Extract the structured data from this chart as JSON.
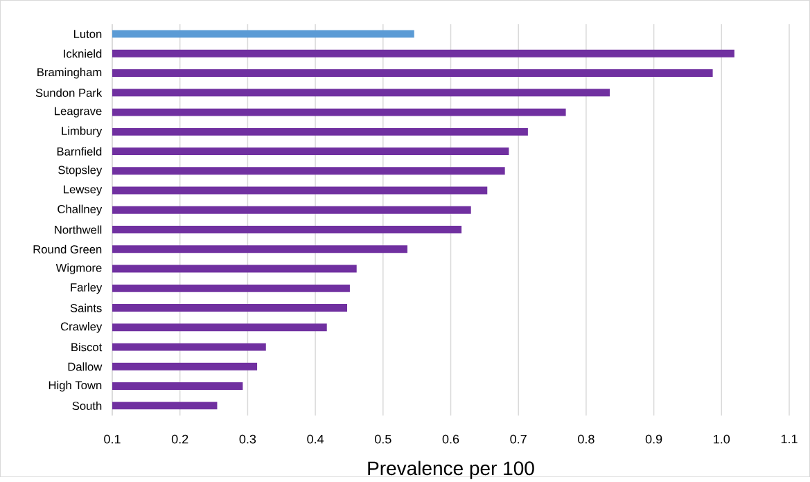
{
  "chart_data": {
    "type": "bar",
    "orientation": "horizontal",
    "xlabel": "Prevalence per 100",
    "categories": [
      "Luton",
      "Icknield",
      "Bramingham",
      "Sundon Park",
      "Leagrave",
      "Limbury",
      "Barnfield",
      "Stopsley",
      "Lewsey",
      "Challney",
      "Northwell",
      "Round Green",
      "Wigmore",
      "Farley",
      "Saints",
      "Crawley",
      "Biscot",
      "Dallow",
      "High Town",
      "South"
    ],
    "values": [
      0.546,
      1.019,
      0.987,
      0.835,
      0.77,
      0.714,
      0.686,
      0.68,
      0.654,
      0.63,
      0.616,
      0.536,
      0.461,
      0.451,
      0.447,
      0.417,
      0.327,
      0.314,
      0.293,
      0.255
    ],
    "colors": [
      "#5b9bd5",
      "#7030a0",
      "#7030a0",
      "#7030a0",
      "#7030a0",
      "#7030a0",
      "#7030a0",
      "#7030a0",
      "#7030a0",
      "#7030a0",
      "#7030a0",
      "#7030a0",
      "#7030a0",
      "#7030a0",
      "#7030a0",
      "#7030a0",
      "#7030a0",
      "#7030a0",
      "#7030a0",
      "#7030a0"
    ],
    "xlim": [
      0.1,
      1.1
    ],
    "xticks": [
      0.1,
      0.2,
      0.3,
      0.4,
      0.5,
      0.6,
      0.7,
      0.8,
      0.9,
      {
        "value": 1.0,
        "label": "1.0"
      },
      1.1
    ],
    "grid": "x"
  }
}
